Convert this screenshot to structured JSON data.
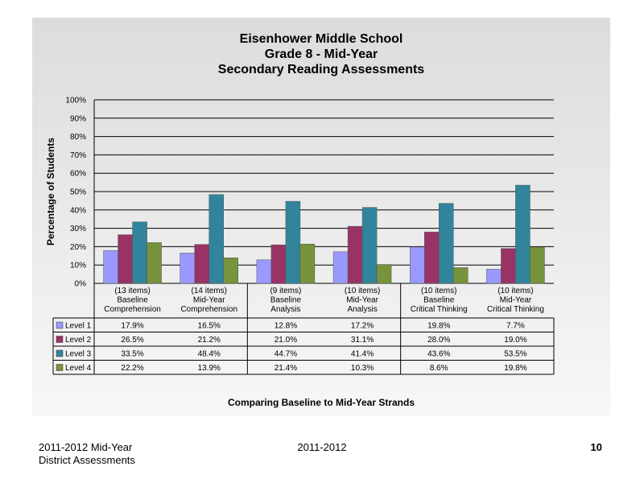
{
  "chart_data": {
    "type": "bar",
    "title_lines": [
      "Eisenhower Middle School",
      "Grade 8 - Mid-Year",
      "Secondary Reading Assessments"
    ],
    "ylabel": "Percentage of Students",
    "xlabel": "Comparing Baseline to Mid-Year Strands",
    "ylim": [
      0,
      100
    ],
    "yticks": [
      "0%",
      "10%",
      "20%",
      "30%",
      "40%",
      "50%",
      "60%",
      "70%",
      "80%",
      "90%",
      "100%"
    ],
    "grid": true,
    "legend": "data-table-left",
    "categories": [
      [
        "(13 items)",
        "Baseline",
        "Comprehension"
      ],
      [
        "(14 items)",
        "Mid-Year",
        "Comprehension"
      ],
      [
        "(9 items)",
        "Baseline",
        "Analysis"
      ],
      [
        "(10 items)",
        "Mid-Year",
        "Analysis"
      ],
      [
        "(10 items)",
        "Baseline",
        "Critical Thinking"
      ],
      [
        "(10 items)",
        "Mid-Year",
        "Critical Thinking"
      ]
    ],
    "series": [
      {
        "name": "Level 1",
        "color": "#9999ff",
        "values": [
          17.9,
          16.5,
          12.8,
          17.2,
          19.8,
          7.7
        ],
        "labels": [
          "17.9%",
          "16.5%",
          "12.8%",
          "17.2%",
          "19.8%",
          "7.7%"
        ]
      },
      {
        "name": "Level 2",
        "color": "#993366",
        "values": [
          26.5,
          21.2,
          21.0,
          31.1,
          28.0,
          19.0
        ],
        "labels": [
          "26.5%",
          "21.2%",
          "21.0%",
          "31.1%",
          "28.0%",
          "19.0%"
        ]
      },
      {
        "name": "Level 3",
        "color": "#31849b",
        "values": [
          33.5,
          48.4,
          44.7,
          41.4,
          43.6,
          53.5
        ],
        "labels": [
          "33.5%",
          "48.4%",
          "44.7%",
          "41.4%",
          "43.6%",
          "53.5%"
        ]
      },
      {
        "name": "Level 4",
        "color": "#77933c",
        "values": [
          22.2,
          13.9,
          21.4,
          10.3,
          8.6,
          19.8
        ],
        "labels": [
          "22.2%",
          "13.9%",
          "21.4%",
          "10.3%",
          "8.6%",
          "19.8%"
        ]
      }
    ]
  },
  "footer": {
    "left_line1": "2011-2012  Mid-Year",
    "left_line2": "District Assessments",
    "center": "2011-2012",
    "page_number": "10"
  }
}
